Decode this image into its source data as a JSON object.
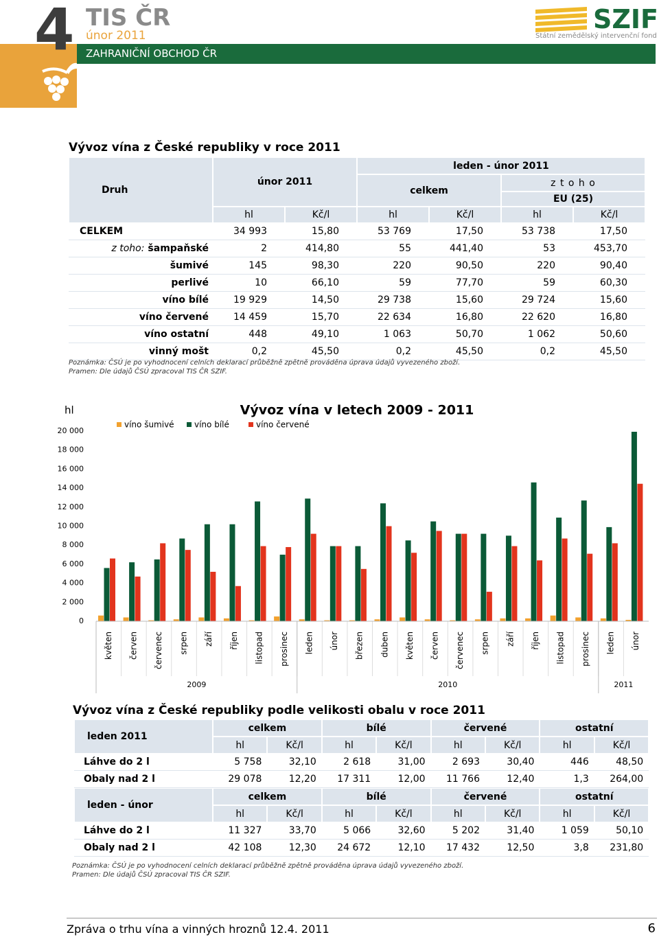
{
  "header": {
    "number": "4",
    "brand": "TIS ČR",
    "issue": "únor 2011",
    "section": "ZAHRANIČNÍ OBCHOD ČR",
    "logo": "SZIF",
    "logo_subtitle": "Státní zemědělský intervenční fond"
  },
  "table1": {
    "title": "Vývoz vína z České republiky v roce 2011",
    "head": {
      "kind": "Druh",
      "period1": "únor 2011",
      "period2": "leden - únor 2011",
      "total": "celkem",
      "of_which": "z t o h o",
      "eu": "EU (25)",
      "units": [
        "hl",
        "Kč/l",
        "hl",
        "Kč/l",
        "hl",
        "Kč/l"
      ]
    },
    "row_prefix": "z toho:",
    "rows": [
      [
        "CELKEM",
        "34 993",
        "15,80",
        "53 769",
        "17,50",
        "53 738",
        "17,50"
      ],
      [
        "šampaňské",
        "2",
        "414,80",
        "55",
        "441,40",
        "53",
        "453,70"
      ],
      [
        "šumivé",
        "145",
        "98,30",
        "220",
        "90,50",
        "220",
        "90,40"
      ],
      [
        "perlivé",
        "10",
        "66,10",
        "59",
        "77,70",
        "59",
        "60,30"
      ],
      [
        "víno bílé",
        "19 929",
        "14,50",
        "29 738",
        "15,60",
        "29 724",
        "15,60"
      ],
      [
        "víno červené",
        "14 459",
        "15,70",
        "22 634",
        "16,80",
        "22 620",
        "16,80"
      ],
      [
        "víno ostatní",
        "448",
        "49,10",
        "1 063",
        "50,70",
        "1 062",
        "50,60"
      ],
      [
        "vinný mošt",
        "0,2",
        "45,50",
        "0,2",
        "45,50",
        "0,2",
        "45,50"
      ]
    ],
    "note": "Poznámka: ČSÚ je po vyhodnocení celních deklarací průběžně zpětně prováděna úprava údajů vyvezeného zboží.",
    "source": "Pramen: Dle údajů ČSÚ zpracoval TIS ČR SZIF."
  },
  "chart_data": {
    "type": "bar",
    "title": "Vývoz vína v letech 2009 - 2011",
    "ylabel": "hl",
    "categories": [
      "květen",
      "červen",
      "červenec",
      "srpen",
      "září",
      "říjen",
      "listopad",
      "prosinec",
      "leden",
      "únor",
      "březen",
      "duben",
      "květen",
      "červen",
      "červenec",
      "srpen",
      "září",
      "říjen",
      "listopad",
      "prosinec",
      "leden",
      "únor"
    ],
    "x_groups": [
      {
        "label": "2009",
        "count": 8
      },
      {
        "label": "2010",
        "count": 12
      },
      {
        "label": "2011",
        "count": 2
      }
    ],
    "series": [
      {
        "name": "víno šumivé",
        "color": "#f2a12e",
        "values": [
          600,
          400,
          100,
          200,
          400,
          300,
          100,
          500,
          200,
          100,
          100,
          200,
          400,
          200,
          100,
          200,
          300,
          300,
          600,
          400,
          300,
          145
        ]
      },
      {
        "name": "víno bílé",
        "color": "#0b5a37",
        "values": [
          5600,
          6200,
          6500,
          8700,
          10200,
          10200,
          12600,
          7000,
          12900,
          7900,
          7900,
          12400,
          8500,
          10500,
          9200,
          9200,
          9000,
          14600,
          10900,
          12700,
          9900,
          19929
        ]
      },
      {
        "name": "víno červené",
        "color": "#e2341d",
        "values": [
          6600,
          4700,
          8200,
          7500,
          5200,
          3700,
          7900,
          7800,
          9200,
          7900,
          5500,
          10000,
          7200,
          9500,
          9200,
          3100,
          7900,
          6400,
          8700,
          7100,
          8200,
          14459
        ]
      }
    ],
    "ylim": [
      0,
      20000
    ],
    "yticks": [
      0,
      {
        "value": 2000,
        "label": "2 000"
      },
      {
        "value": 4000,
        "label": "4 000"
      },
      {
        "value": 6000,
        "label": "6 000"
      },
      {
        "value": 8000,
        "label": "8 000"
      },
      {
        "value": 10000,
        "label": "10 000"
      },
      {
        "value": 12000,
        "label": "12 000"
      },
      {
        "value": 14000,
        "label": "14 000"
      },
      {
        "value": 16000,
        "label": "16 000"
      },
      {
        "value": 18000,
        "label": "18 000"
      },
      {
        "value": 20000,
        "label": "20 000"
      }
    ],
    "grid": false,
    "legend": "top"
  },
  "table2": {
    "title": "Vývoz vína z České republiky podle velikosti obalu v roce 2011",
    "groups": [
      "celkem",
      "bílé",
      "červené",
      "ostatní"
    ],
    "units": [
      "hl",
      "Kč/l"
    ],
    "blocks": [
      {
        "label": "leden 2011",
        "rows": [
          [
            "Láhve do 2 l",
            "5 758",
            "32,10",
            "2 618",
            "31,00",
            "2 693",
            "30,40",
            "446",
            "48,50"
          ],
          [
            "Obaly nad 2 l",
            "29 078",
            "12,20",
            "17 311",
            "12,00",
            "11 766",
            "12,40",
            "1,3",
            "264,00"
          ]
        ]
      },
      {
        "label": "leden - únor",
        "rows": [
          [
            "Láhve do 2 l",
            "11 327",
            "33,70",
            "5 066",
            "32,60",
            "5 202",
            "31,40",
            "1 059",
            "50,10"
          ],
          [
            "Obaly nad 2 l",
            "42 108",
            "12,30",
            "24 672",
            "12,10",
            "17 432",
            "12,50",
            "3,8",
            "231,80"
          ]
        ]
      }
    ],
    "note": "Poznámka: ČSÚ je po vyhodnocení celních deklarací průběžně zpětně prováděna úprava údajů vyvezeného zboží.",
    "source": "Pramen: Dle údajů ČSÚ zpracoval TIS ČR SZIF."
  },
  "footer": {
    "text": "Zpráva o trhu vína a vinných hroznů 12.4. 2011",
    "page": "6"
  }
}
